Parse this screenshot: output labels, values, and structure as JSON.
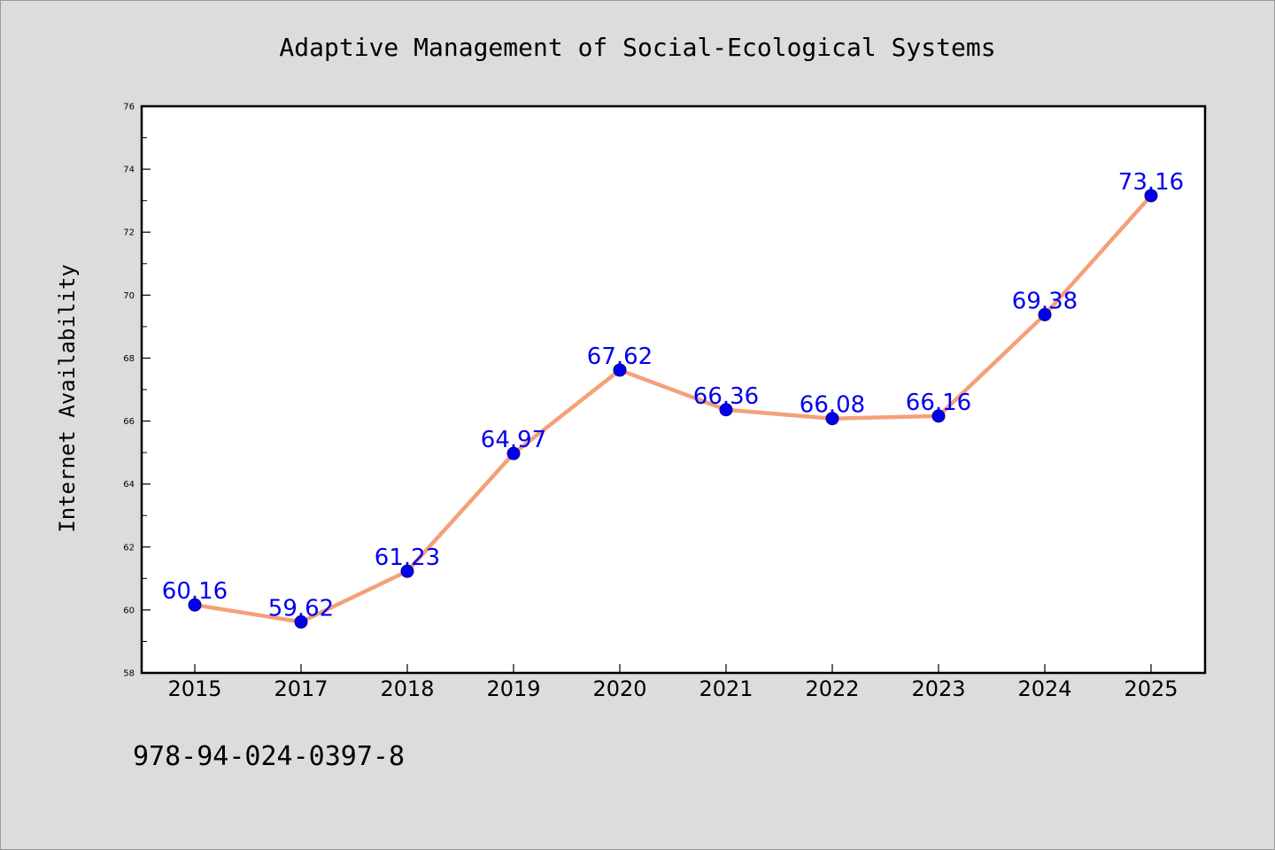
{
  "chart_data": {
    "type": "line",
    "title": "Adaptive Management of Social-Ecological Systems",
    "xlabel": "",
    "ylabel": "Internet Availability",
    "categories": [
      "2015",
      "2017",
      "2018",
      "2019",
      "2020",
      "2021",
      "2022",
      "2023",
      "2024",
      "2025"
    ],
    "series": [
      {
        "values": [
          60.16,
          59.62,
          61.23,
          64.97,
          67.62,
          66.36,
          66.08,
          66.16,
          69.38,
          73.16
        ],
        "labels": [
          "60.16",
          "59.62",
          "61.23",
          "64.97",
          "67.62",
          "66.36",
          "66.08",
          "66.16",
          "69.38",
          "73.16"
        ]
      }
    ],
    "ylim": [
      58,
      76
    ],
    "yticks": [
      "58",
      "60",
      "62",
      "64",
      "66",
      "68",
      "70",
      "72",
      "74",
      "76"
    ],
    "grid": false,
    "legend": "none",
    "line_color": "#f4a07a",
    "marker_color": "#0000ee",
    "label_color": "#0000ee"
  },
  "footer": {
    "isbn": "978-94-024-0397-8"
  }
}
